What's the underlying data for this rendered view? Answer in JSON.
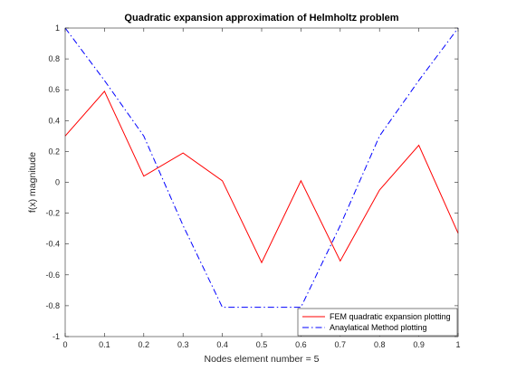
{
  "chart_data": {
    "type": "line",
    "title": "Quadratic expansion approximation of Helmholtz problem",
    "xlabel": "Nodes element number = 5",
    "ylabel": "f(x) magnitude",
    "xlim": [
      0,
      1
    ],
    "ylim": [
      -1,
      1
    ],
    "xticks": [
      "0",
      "0.1",
      "0.2",
      "0.3",
      "0.4",
      "0.5",
      "0.6",
      "0.7",
      "0.8",
      "0.9",
      "1"
    ],
    "yticks": [
      "-1",
      "-0.8",
      "-0.6",
      "-0.4",
      "-0.2",
      "0",
      "0.2",
      "0.4",
      "0.6",
      "0.8",
      "1"
    ],
    "grid": false,
    "legend_position": "bottom-right",
    "x": [
      0,
      0.1,
      0.2,
      0.3,
      0.4,
      0.5,
      0.6,
      0.7,
      0.8,
      0.9,
      1.0
    ],
    "series": [
      {
        "name": "FEM quadratic expansion plotting",
        "color": "#ff0000",
        "style": "solid",
        "values": [
          0.3,
          0.59,
          0.04,
          0.19,
          0.01,
          -0.52,
          0.01,
          -0.51,
          -0.05,
          0.24,
          -0.33
        ]
      },
      {
        "name": "Anaylatical Method plotting",
        "color": "#0000ff",
        "style": "dashdot",
        "values": [
          1.0,
          0.66,
          0.3,
          -0.28,
          -0.81,
          -0.81,
          -0.81,
          -0.28,
          0.3,
          0.66,
          1.0
        ]
      }
    ]
  }
}
